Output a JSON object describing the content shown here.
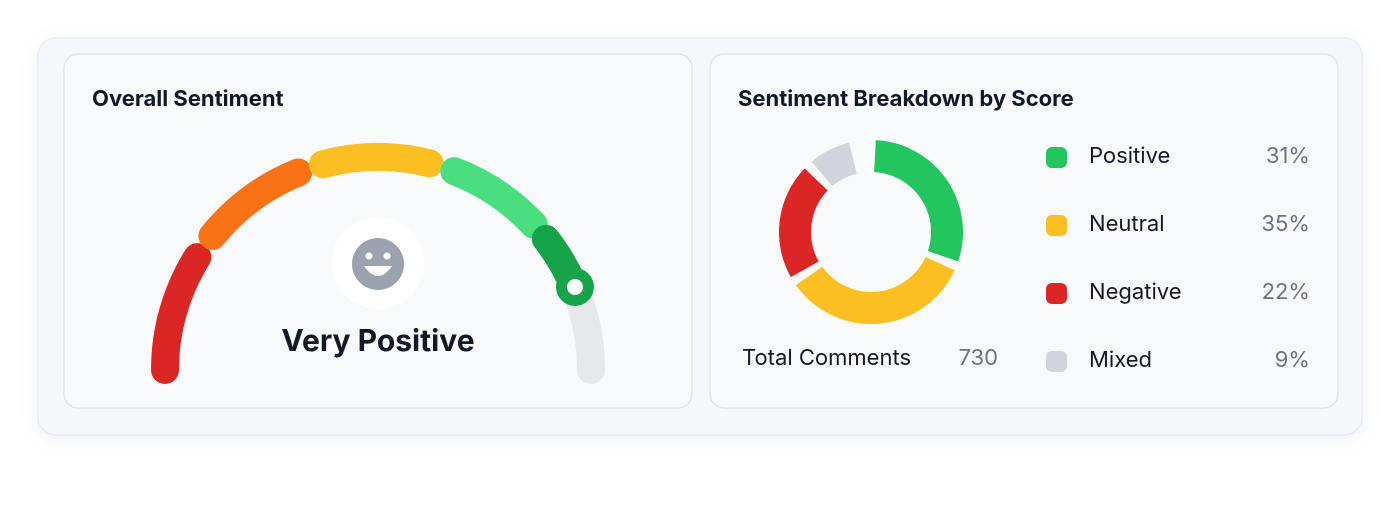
{
  "gauge": {
    "title": "Overall Sentiment",
    "label": "Very Positive"
  },
  "chart_data": {
    "type": "donut",
    "title": "Sentiment Breakdown by Score",
    "categories": [
      "Positive",
      "Neutral",
      "Negative",
      "Mixed"
    ],
    "values": [
      31,
      35,
      22,
      9
    ],
    "value_labels": [
      "31%",
      "35%",
      "22%",
      "9%"
    ],
    "colors": [
      "#22c55e",
      "#fbbf24",
      "#dc2626",
      "#d1d5db"
    ]
  },
  "total": {
    "label": "Total Comments",
    "value": 730
  }
}
